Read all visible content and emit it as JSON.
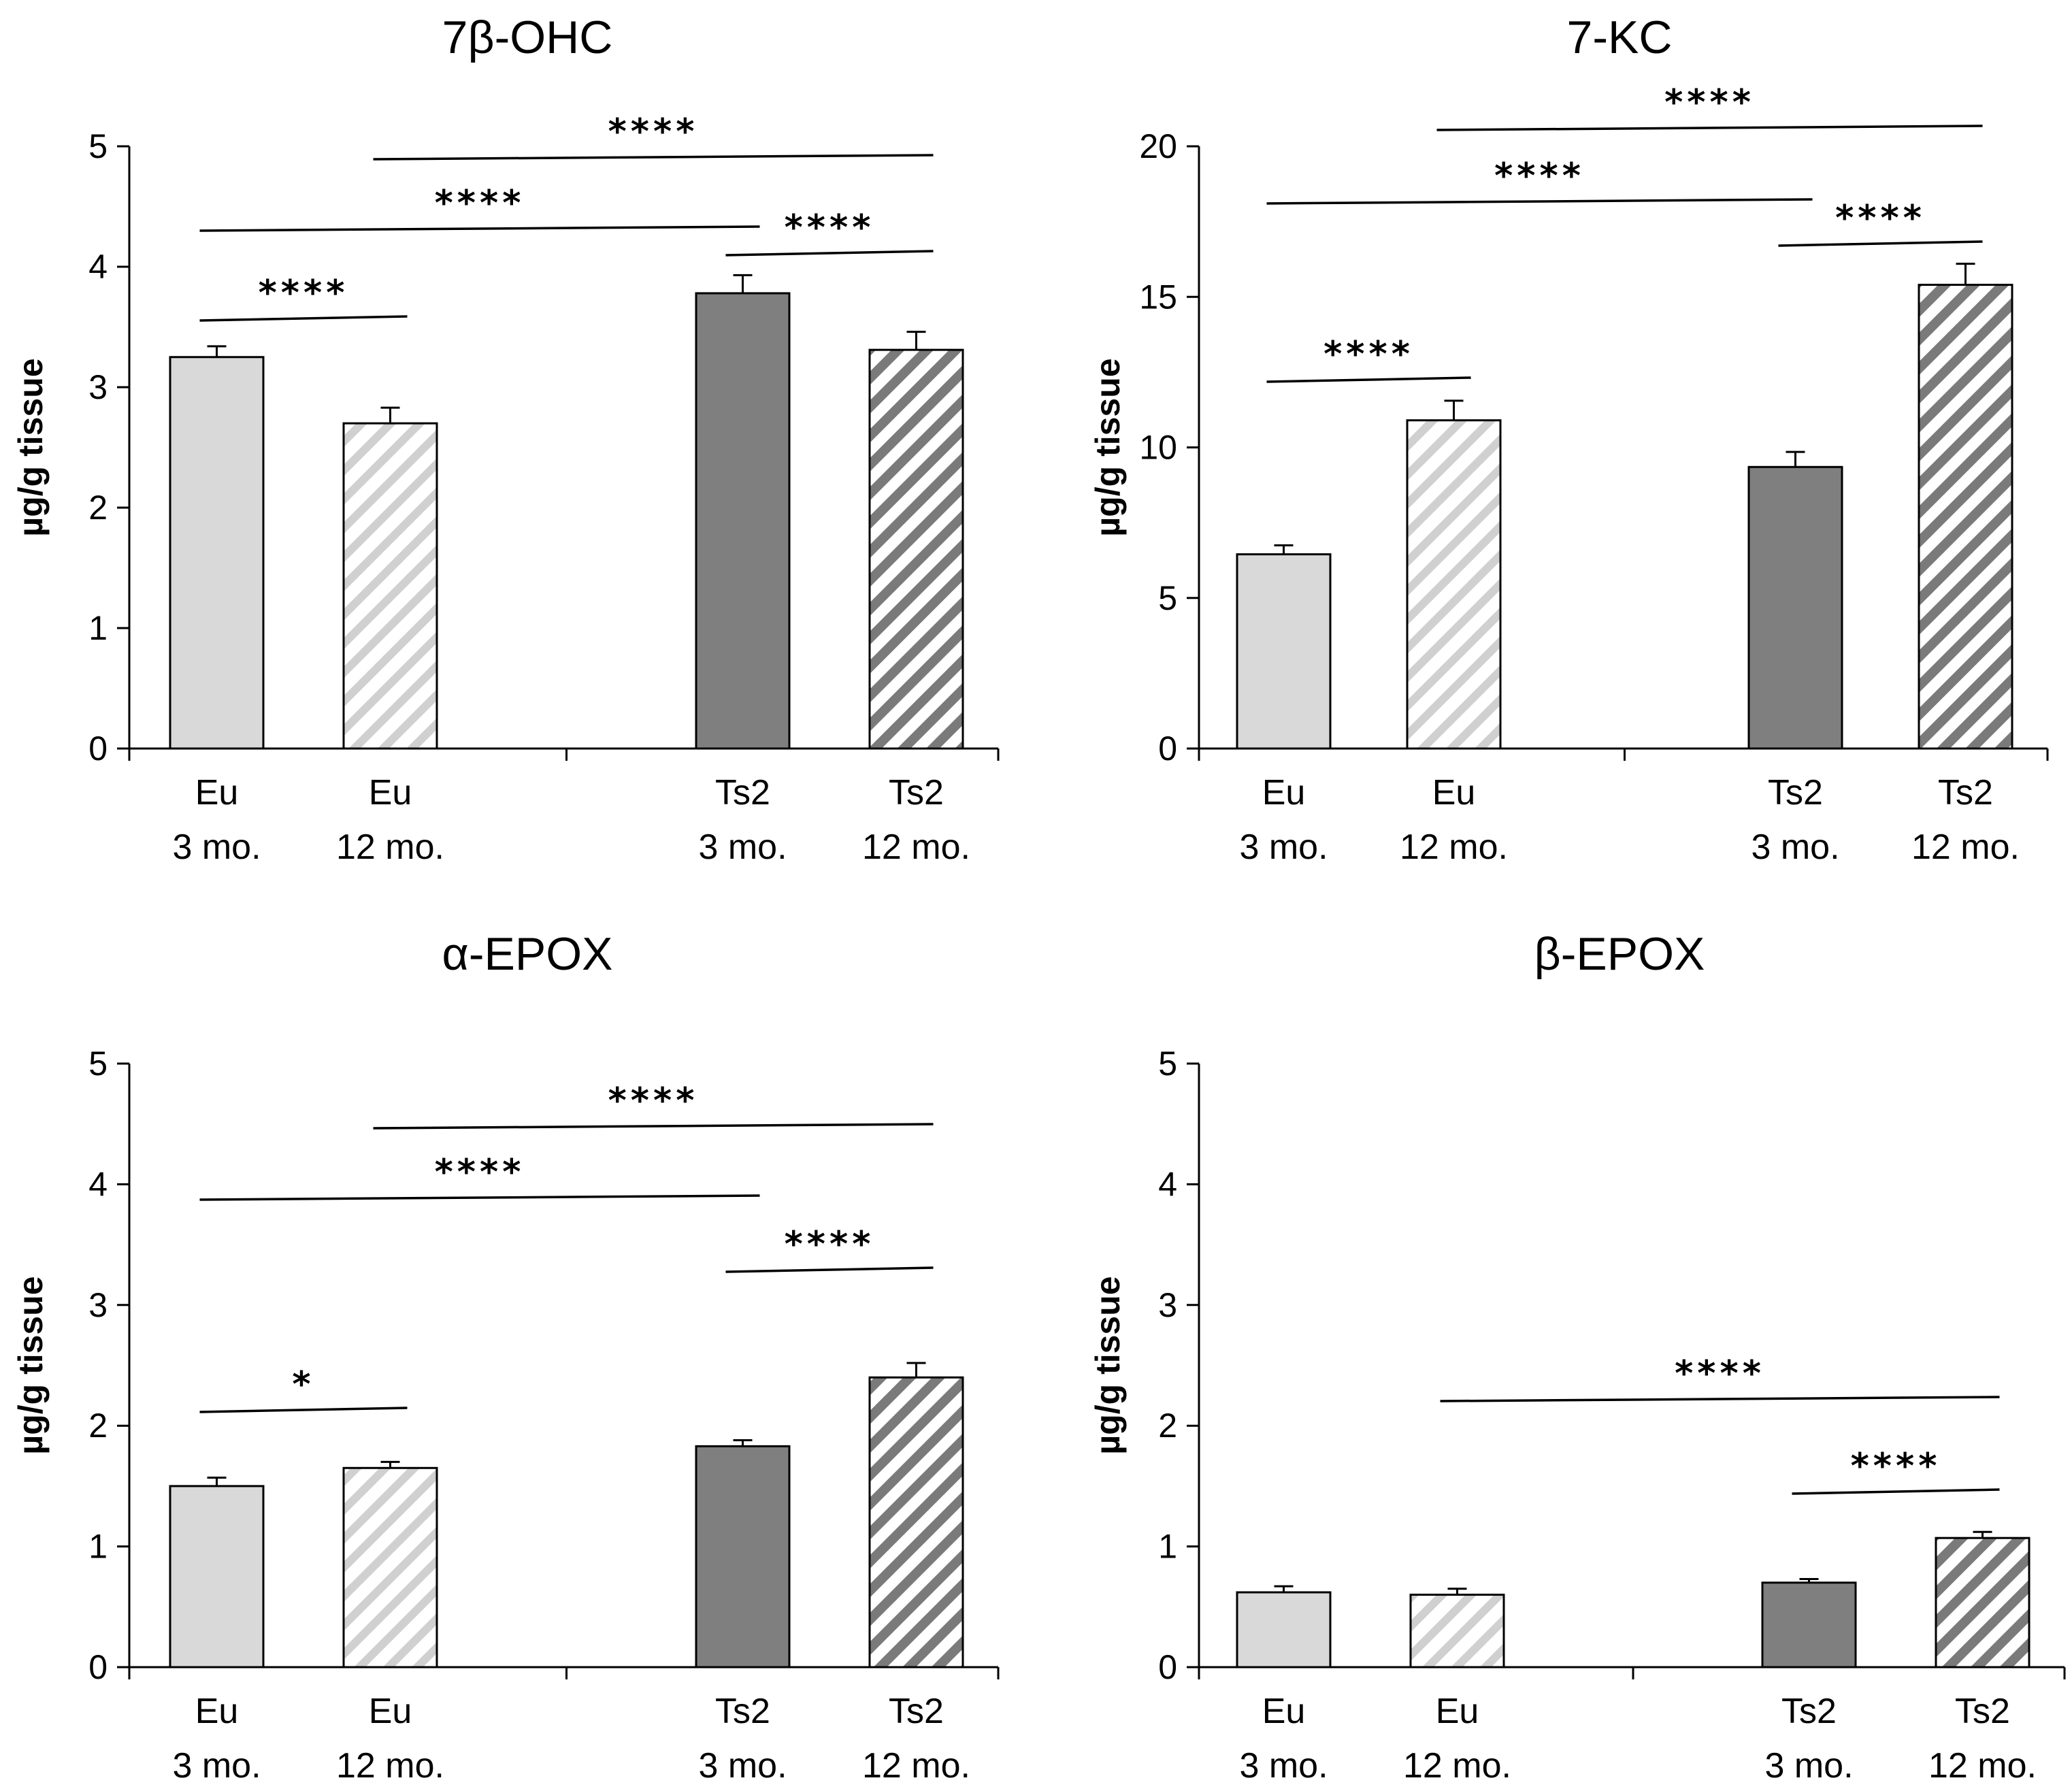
{
  "chart_data": [
    {
      "type": "bar",
      "title": "7β-OHC",
      "ylabel": "µg/g tissue",
      "ylim": [
        0,
        5
      ],
      "yticks": [
        0,
        1,
        2,
        3,
        4,
        5
      ],
      "categories": [
        [
          "Eu",
          "3 mo."
        ],
        [
          "Eu",
          "12 mo."
        ],
        [
          "Ts2",
          "3 mo."
        ],
        [
          "Ts2",
          "12 mo."
        ]
      ],
      "values": [
        3.25,
        2.7,
        3.78,
        3.31
      ],
      "errors": [
        0.09,
        0.13,
        0.15,
        0.15
      ],
      "significance": [
        {
          "from": 0,
          "to": 1,
          "label": "****"
        },
        {
          "from": 0,
          "to": 2,
          "label": "****"
        },
        {
          "from": 1,
          "to": 3,
          "label": "****"
        },
        {
          "from": 2,
          "to": 3,
          "label": "****"
        }
      ]
    },
    {
      "type": "bar",
      "title": "7-KC",
      "ylabel": "µg/g tissue",
      "ylim": [
        0,
        20
      ],
      "yticks": [
        0,
        5,
        10,
        15,
        20
      ],
      "categories": [
        [
          "Eu",
          "3 mo."
        ],
        [
          "Eu",
          "12 mo."
        ],
        [
          "Ts2",
          "3 mo."
        ],
        [
          "Ts2",
          "12 mo."
        ]
      ],
      "values": [
        6.45,
        10.9,
        9.35,
        15.4
      ],
      "errors": [
        0.3,
        0.65,
        0.5,
        0.7
      ],
      "significance": [
        {
          "from": 0,
          "to": 1,
          "label": "****"
        },
        {
          "from": 0,
          "to": 2,
          "label": "****"
        },
        {
          "from": 1,
          "to": 3,
          "label": "****"
        },
        {
          "from": 2,
          "to": 3,
          "label": "****"
        }
      ]
    },
    {
      "type": "bar",
      "title": "α-EPOX",
      "ylabel": "µg/g tissue",
      "ylim": [
        0,
        5
      ],
      "yticks": [
        0,
        1,
        2,
        3,
        4,
        5
      ],
      "categories": [
        [
          "Eu",
          "3 mo."
        ],
        [
          "Eu",
          "12 mo."
        ],
        [
          "Ts2",
          "3 mo."
        ],
        [
          "Ts2",
          "12 mo."
        ]
      ],
      "values": [
        1.5,
        1.65,
        1.83,
        2.4
      ],
      "errors": [
        0.07,
        0.05,
        0.05,
        0.12
      ],
      "significance": [
        {
          "from": 0,
          "to": 1,
          "label": "*"
        },
        {
          "from": 0,
          "to": 2,
          "label": "****"
        },
        {
          "from": 1,
          "to": 3,
          "label": "****"
        },
        {
          "from": 2,
          "to": 3,
          "label": "****"
        }
      ]
    },
    {
      "type": "bar",
      "title": "β-EPOX",
      "ylabel": "µg/g tissue",
      "ylim": [
        0,
        5
      ],
      "yticks": [
        0,
        1,
        2,
        3,
        4,
        5
      ],
      "categories": [
        [
          "Eu",
          "3 mo."
        ],
        [
          "Eu",
          "12 mo."
        ],
        [
          "Ts2",
          "3 mo."
        ],
        [
          "Ts2",
          "12 mo."
        ]
      ],
      "values": [
        0.62,
        0.6,
        0.7,
        1.07
      ],
      "errors": [
        0.05,
        0.05,
        0.03,
        0.05
      ],
      "significance": [
        {
          "from": 1,
          "to": 3,
          "label": "****"
        },
        {
          "from": 2,
          "to": 3,
          "label": "****"
        }
      ]
    }
  ],
  "colors": {
    "eu_fill": "#d9d9d9",
    "ts2_fill": "#7f7f7f",
    "eu_hatch": "#d0d0d0",
    "ts2_hatch": "#7a7a7a",
    "axis": "#000000"
  }
}
